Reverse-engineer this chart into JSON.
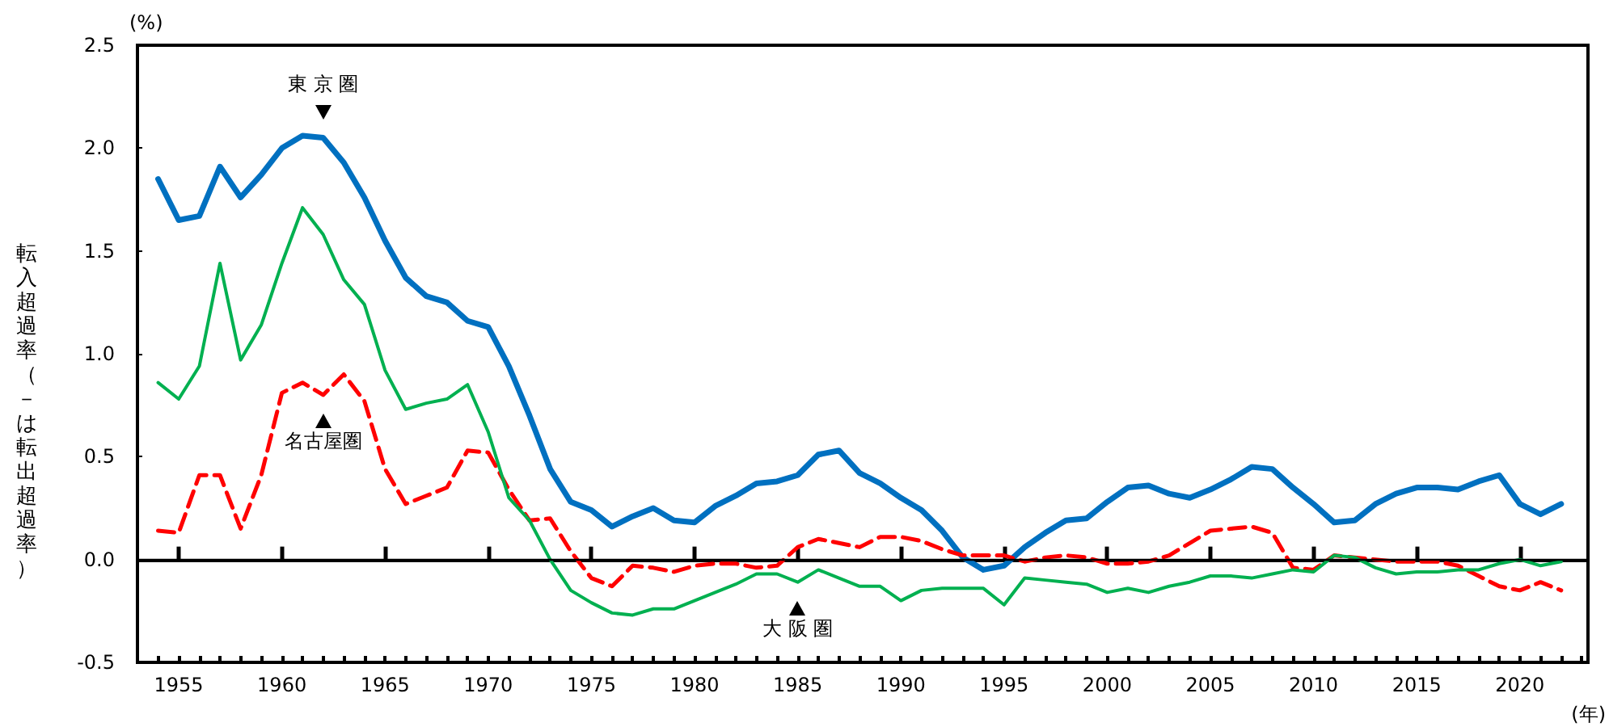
{
  "chart_data": {
    "type": "line",
    "ylabel": "転入超過率（－は転出超過率）",
    "xlabel": "(年)",
    "annotations": [
      "(%)"
    ],
    "x": [
      1954,
      1955,
      1956,
      1957,
      1958,
      1959,
      1960,
      1961,
      1962,
      1963,
      1964,
      1965,
      1966,
      1967,
      1968,
      1969,
      1970,
      1971,
      1972,
      1973,
      1974,
      1975,
      1976,
      1977,
      1978,
      1979,
      1980,
      1981,
      1982,
      1983,
      1984,
      1985,
      1986,
      1987,
      1988,
      1989,
      1990,
      1991,
      1992,
      1993,
      1994,
      1995,
      1996,
      1997,
      1998,
      1999,
      2000,
      2001,
      2002,
      2003,
      2004,
      2005,
      2006,
      2007,
      2008,
      2009,
      2010,
      2011,
      2012,
      2013,
      2014,
      2015,
      2016,
      2017,
      2018,
      2019,
      2020,
      2021,
      2022
    ],
    "series": [
      {
        "name": "東 京 圏",
        "color": "#0070c0",
        "line_style": "solid",
        "values": [
          1.85,
          1.65,
          1.67,
          1.91,
          1.76,
          1.87,
          2.0,
          2.06,
          2.05,
          1.93,
          1.76,
          1.55,
          1.37,
          1.28,
          1.25,
          1.16,
          1.13,
          0.94,
          0.7,
          0.44,
          0.28,
          0.24,
          0.16,
          0.21,
          0.25,
          0.19,
          0.18,
          0.26,
          0.31,
          0.37,
          0.38,
          0.41,
          0.51,
          0.53,
          0.42,
          0.37,
          0.3,
          0.24,
          0.14,
          0.01,
          -0.05,
          -0.03,
          0.06,
          0.13,
          0.19,
          0.2,
          0.28,
          0.35,
          0.36,
          0.32,
          0.3,
          0.34,
          0.39,
          0.45,
          0.44,
          0.35,
          0.27,
          0.18,
          0.19,
          0.27,
          0.32,
          0.35,
          0.35,
          0.34,
          0.38,
          0.41,
          0.27,
          0.22,
          0.27
        ]
      },
      {
        "name": "名古屋圏",
        "color": "#ff0000",
        "line_style": "dashed",
        "values": [
          0.14,
          0.13,
          0.41,
          0.41,
          0.15,
          0.41,
          0.81,
          0.86,
          0.8,
          0.9,
          0.77,
          0.44,
          0.27,
          0.31,
          0.35,
          0.53,
          0.52,
          0.34,
          0.19,
          0.2,
          0.04,
          -0.09,
          -0.13,
          -0.03,
          -0.04,
          -0.06,
          -0.03,
          -0.02,
          -0.02,
          -0.04,
          -0.03,
          0.06,
          0.1,
          0.08,
          0.06,
          0.11,
          0.11,
          0.09,
          0.05,
          0.02,
          0.02,
          0.02,
          -0.01,
          0.01,
          0.02,
          0.01,
          -0.02,
          -0.02,
          -0.01,
          0.02,
          0.08,
          0.14,
          0.15,
          0.16,
          0.13,
          -0.04,
          -0.05,
          0.02,
          0.01,
          0.0,
          -0.01,
          -0.01,
          -0.01,
          -0.03,
          -0.08,
          -0.13,
          -0.15,
          -0.11,
          -0.15
        ]
      },
      {
        "name": "大 阪 圏",
        "color": "#00b050",
        "line_style": "solid",
        "values": [
          0.86,
          0.78,
          0.94,
          1.44,
          0.97,
          1.14,
          1.44,
          1.71,
          1.58,
          1.36,
          1.24,
          0.92,
          0.73,
          0.76,
          0.78,
          0.85,
          0.62,
          0.3,
          0.19,
          0.0,
          -0.15,
          -0.21,
          -0.26,
          -0.27,
          -0.24,
          -0.24,
          -0.2,
          -0.16,
          -0.12,
          -0.07,
          -0.07,
          -0.11,
          -0.05,
          -0.09,
          -0.13,
          -0.13,
          -0.2,
          -0.15,
          -0.14,
          -0.14,
          -0.14,
          -0.22,
          -0.09,
          -0.1,
          -0.11,
          -0.12,
          -0.16,
          -0.14,
          -0.16,
          -0.13,
          -0.11,
          -0.08,
          -0.08,
          -0.09,
          -0.07,
          -0.05,
          -0.06,
          0.02,
          0.01,
          -0.04,
          -0.07,
          -0.06,
          -0.06,
          -0.05,
          -0.05,
          -0.02,
          0.0,
          -0.03,
          -0.01
        ]
      }
    ],
    "xlim": [
      1953,
      2023.3
    ],
    "xticks": [
      1955,
      1960,
      1965,
      1970,
      1975,
      1980,
      1985,
      1990,
      1995,
      2000,
      2005,
      2010,
      2015,
      2020
    ],
    "ylim": [
      -0.5,
      2.5
    ],
    "yticks": [
      {
        "value": -0.5,
        "label": "-0.5"
      },
      {
        "value": 0,
        "label": "0.0"
      },
      {
        "value": 0.5,
        "label": "0.5"
      },
      {
        "value": 1,
        "label": "1.0"
      },
      {
        "value": 1.5,
        "label": "1.5"
      },
      {
        "value": 2,
        "label": "2.0"
      },
      {
        "value": 2.5,
        "label": "2.5"
      }
    ],
    "ref_lines": [
      {
        "axis": "y",
        "value": 0,
        "color": "#000000"
      }
    ],
    "marker": "none",
    "grid": false,
    "legend": false
  }
}
